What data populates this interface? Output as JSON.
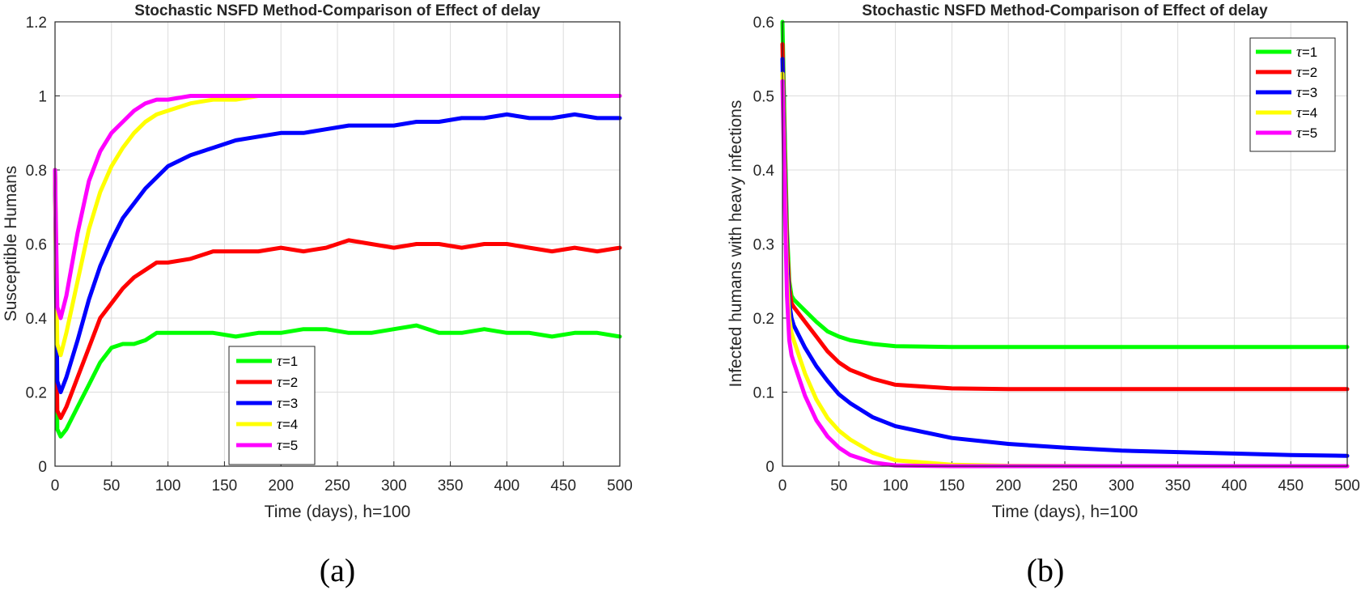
{
  "chart_data": [
    {
      "type": "line",
      "panel_label": "(a)",
      "title": "Stochastic NSFD Method-Comparison of Effect of delay",
      "xlabel": "Time (days), h=100",
      "ylabel": "Susceptible Humans",
      "xlim": [
        0,
        500
      ],
      "ylim": [
        0,
        1.2
      ],
      "xticks": [
        0,
        50,
        100,
        150,
        200,
        250,
        300,
        350,
        400,
        450,
        500
      ],
      "yticks": [
        0,
        0.2,
        0.4,
        0.6,
        0.8,
        1,
        1.2
      ],
      "xtick_labels": [
        "0",
        "50",
        "100",
        "150",
        "200",
        "250",
        "300",
        "350",
        "400",
        "450",
        "500"
      ],
      "ytick_labels": [
        "0",
        "0.2",
        "0.4",
        "0.6",
        "0.8",
        "1",
        "1.2"
      ],
      "grid": true,
      "legend_position": "bottom-center",
      "series": [
        {
          "name": "τ=1",
          "tau": "τ",
          "eq": "=1",
          "color": "#00ff00",
          "x": [
            0,
            2,
            5,
            10,
            20,
            30,
            40,
            50,
            60,
            70,
            80,
            90,
            100,
            120,
            140,
            160,
            180,
            200,
            220,
            240,
            260,
            280,
            300,
            320,
            340,
            360,
            380,
            400,
            420,
            440,
            460,
            480,
            500
          ],
          "y": [
            0.8,
            0.1,
            0.08,
            0.1,
            0.16,
            0.22,
            0.28,
            0.32,
            0.33,
            0.33,
            0.34,
            0.36,
            0.36,
            0.36,
            0.36,
            0.35,
            0.36,
            0.36,
            0.37,
            0.37,
            0.36,
            0.36,
            0.37,
            0.38,
            0.36,
            0.36,
            0.37,
            0.36,
            0.36,
            0.35,
            0.36,
            0.36,
            0.35
          ]
        },
        {
          "name": "τ=2",
          "tau": "τ",
          "eq": "=2",
          "color": "#ff0000",
          "x": [
            0,
            2,
            5,
            10,
            20,
            30,
            40,
            50,
            60,
            70,
            80,
            90,
            100,
            120,
            140,
            160,
            180,
            200,
            220,
            240,
            260,
            280,
            300,
            320,
            340,
            360,
            380,
            400,
            420,
            440,
            460,
            480,
            500
          ],
          "y": [
            0.8,
            0.15,
            0.13,
            0.16,
            0.24,
            0.32,
            0.4,
            0.44,
            0.48,
            0.51,
            0.53,
            0.55,
            0.55,
            0.56,
            0.58,
            0.58,
            0.58,
            0.59,
            0.58,
            0.59,
            0.61,
            0.6,
            0.59,
            0.6,
            0.6,
            0.59,
            0.6,
            0.6,
            0.59,
            0.58,
            0.59,
            0.58,
            0.59
          ]
        },
        {
          "name": "τ=3",
          "tau": "τ",
          "eq": "=3",
          "color": "#0000ff",
          "x": [
            0,
            2,
            5,
            10,
            20,
            30,
            40,
            50,
            60,
            70,
            80,
            90,
            100,
            120,
            140,
            160,
            180,
            200,
            220,
            240,
            260,
            280,
            300,
            320,
            340,
            360,
            380,
            400,
            420,
            440,
            460,
            480,
            500
          ],
          "y": [
            0.8,
            0.23,
            0.2,
            0.24,
            0.34,
            0.45,
            0.54,
            0.61,
            0.67,
            0.71,
            0.75,
            0.78,
            0.81,
            0.84,
            0.86,
            0.88,
            0.89,
            0.9,
            0.9,
            0.91,
            0.92,
            0.92,
            0.92,
            0.93,
            0.93,
            0.94,
            0.94,
            0.95,
            0.94,
            0.94,
            0.95,
            0.94,
            0.94
          ]
        },
        {
          "name": "τ=4",
          "tau": "τ",
          "eq": "=4",
          "color": "#ffff00",
          "x": [
            0,
            2,
            5,
            10,
            20,
            30,
            40,
            50,
            60,
            70,
            80,
            90,
            100,
            120,
            140,
            160,
            180,
            200,
            250,
            300,
            350,
            400,
            450,
            500
          ],
          "y": [
            0.8,
            0.33,
            0.3,
            0.36,
            0.5,
            0.64,
            0.74,
            0.81,
            0.86,
            0.9,
            0.93,
            0.95,
            0.96,
            0.98,
            0.99,
            0.99,
            1.0,
            1.0,
            1.0,
            1.0,
            1.0,
            1.0,
            1.0,
            1.0
          ]
        },
        {
          "name": "τ=5",
          "tau": "τ",
          "eq": "=5",
          "color": "#ff00ff",
          "x": [
            0,
            2,
            5,
            10,
            20,
            30,
            40,
            50,
            60,
            70,
            80,
            90,
            100,
            120,
            140,
            160,
            180,
            200,
            250,
            300,
            350,
            400,
            450,
            500
          ],
          "y": [
            0.8,
            0.43,
            0.4,
            0.46,
            0.63,
            0.77,
            0.85,
            0.9,
            0.93,
            0.96,
            0.98,
            0.99,
            0.99,
            1.0,
            1.0,
            1.0,
            1.0,
            1.0,
            1.0,
            1.0,
            1.0,
            1.0,
            1.0,
            1.0
          ]
        }
      ]
    },
    {
      "type": "line",
      "panel_label": "(b)",
      "title": "Stochastic NSFD Method-Comparison of Effect of delay",
      "xlabel": "Time (days), h=100",
      "ylabel": "Infected humans with heavy infections",
      "xlim": [
        0,
        500
      ],
      "ylim": [
        0,
        0.6
      ],
      "xticks": [
        0,
        50,
        100,
        150,
        200,
        250,
        300,
        350,
        400,
        450,
        500
      ],
      "yticks": [
        0,
        0.1,
        0.2,
        0.3,
        0.4,
        0.5,
        0.6
      ],
      "xtick_labels": [
        "0",
        "50",
        "100",
        "150",
        "200",
        "250",
        "300",
        "350",
        "400",
        "450",
        "500"
      ],
      "ytick_labels": [
        "0",
        "0.1",
        "0.2",
        "0.3",
        "0.4",
        "0.5",
        "0.6"
      ],
      "grid": true,
      "legend_position": "top-right",
      "series": [
        {
          "name": "τ=1",
          "tau": "τ",
          "eq": "=1",
          "color": "#00ff00",
          "x": [
            0,
            2,
            4,
            6,
            8,
            10,
            20,
            30,
            40,
            50,
            60,
            80,
            100,
            150,
            200,
            300,
            400,
            500
          ],
          "y": [
            0.6,
            0.45,
            0.32,
            0.25,
            0.23,
            0.225,
            0.21,
            0.195,
            0.182,
            0.175,
            0.17,
            0.165,
            0.162,
            0.161,
            0.161,
            0.161,
            0.161,
            0.161
          ]
        },
        {
          "name": "τ=2",
          "tau": "τ",
          "eq": "=2",
          "color": "#ff0000",
          "x": [
            0,
            2,
            4,
            6,
            8,
            10,
            20,
            30,
            40,
            50,
            60,
            80,
            100,
            150,
            200,
            300,
            400,
            500
          ],
          "y": [
            0.57,
            0.42,
            0.3,
            0.24,
            0.22,
            0.215,
            0.195,
            0.175,
            0.155,
            0.14,
            0.13,
            0.118,
            0.11,
            0.105,
            0.104,
            0.104,
            0.104,
            0.104
          ]
        },
        {
          "name": "τ=3",
          "tau": "τ",
          "eq": "=3",
          "color": "#0000ff",
          "x": [
            0,
            2,
            4,
            6,
            8,
            10,
            20,
            30,
            40,
            50,
            60,
            80,
            100,
            150,
            200,
            250,
            300,
            350,
            400,
            450,
            500
          ],
          "y": [
            0.55,
            0.4,
            0.28,
            0.22,
            0.2,
            0.19,
            0.16,
            0.135,
            0.115,
            0.097,
            0.085,
            0.066,
            0.054,
            0.038,
            0.03,
            0.025,
            0.021,
            0.019,
            0.017,
            0.015,
            0.014
          ]
        },
        {
          "name": "τ=4",
          "tau": "τ",
          "eq": "=4",
          "color": "#ffff00",
          "x": [
            0,
            2,
            4,
            6,
            8,
            10,
            20,
            30,
            40,
            50,
            60,
            80,
            100,
            150,
            200,
            300,
            400,
            500
          ],
          "y": [
            0.53,
            0.38,
            0.26,
            0.2,
            0.18,
            0.17,
            0.125,
            0.09,
            0.065,
            0.048,
            0.036,
            0.018,
            0.008,
            0.002,
            0.0005,
            0,
            0,
            0
          ]
        },
        {
          "name": "τ=5",
          "tau": "τ",
          "eq": "=5",
          "color": "#ff00ff",
          "x": [
            0,
            2,
            4,
            6,
            8,
            10,
            20,
            30,
            40,
            50,
            60,
            80,
            100,
            150,
            200,
            300,
            400,
            500
          ],
          "y": [
            0.52,
            0.36,
            0.23,
            0.17,
            0.15,
            0.14,
            0.095,
            0.062,
            0.04,
            0.025,
            0.015,
            0.005,
            0.001,
            0,
            0,
            0,
            0,
            0
          ]
        }
      ]
    }
  ]
}
